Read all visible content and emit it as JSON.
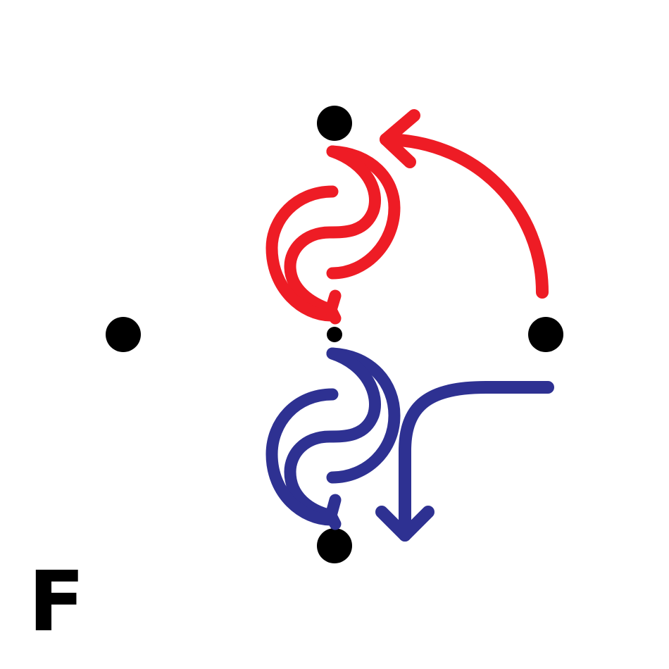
{
  "panel": {
    "label": "F"
  },
  "colors": {
    "dot": "#000000",
    "upper_arrows": "#ee1c25",
    "lower_arrows": "#2e3192",
    "label": "#000000"
  },
  "icons": {
    "upper_spiral": "red-double-spiral-arrow-icon",
    "upper_arc": "red-curved-arrow-icon",
    "lower_spiral": "blue-double-spiral-arrow-icon",
    "lower_bend": "blue-bent-arrow-icon"
  }
}
